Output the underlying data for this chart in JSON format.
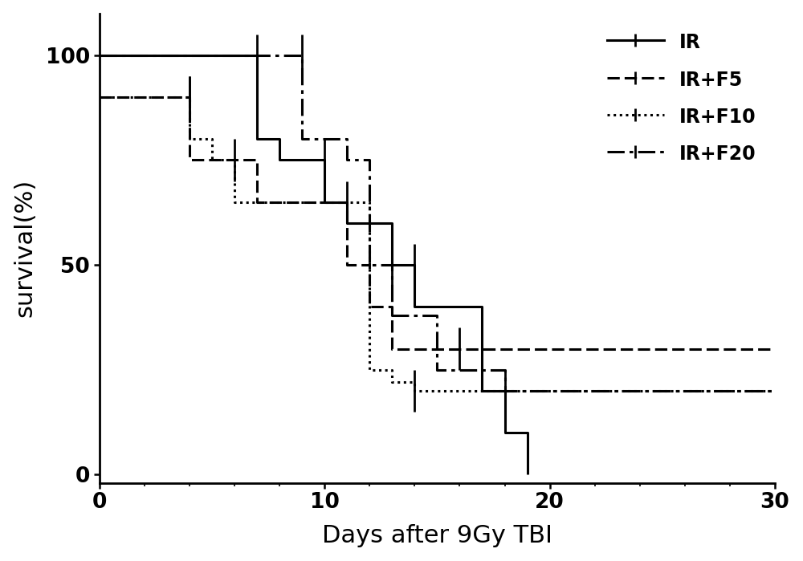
{
  "title": "",
  "xlabel": "Days after 9Gy TBI",
  "ylabel": "survival(%)",
  "xlim": [
    0,
    30
  ],
  "ylim": [
    -2,
    110
  ],
  "yticks": [
    0,
    50,
    100
  ],
  "xticks": [
    0,
    10,
    20,
    30
  ],
  "background_color": "#ffffff",
  "curves": {
    "IR": {
      "x": [
        0,
        7,
        7,
        8,
        8,
        10,
        10,
        11,
        11,
        13,
        13,
        14,
        14,
        17,
        17,
        18,
        18,
        19,
        19
      ],
      "y": [
        100,
        100,
        80,
        80,
        75,
        75,
        65,
        65,
        60,
        60,
        50,
        50,
        40,
        40,
        20,
        20,
        10,
        10,
        0
      ],
      "label": "IR",
      "censors": []
    },
    "IR+F5": {
      "x": [
        0,
        4,
        4,
        7,
        7,
        11,
        11,
        12,
        12,
        13,
        13,
        16,
        16,
        30
      ],
      "y": [
        90,
        90,
        75,
        75,
        65,
        65,
        50,
        50,
        40,
        40,
        30,
        30,
        30,
        30
      ],
      "label": "IR+F5",
      "censors": []
    },
    "IR+F10": {
      "x": [
        0,
        4,
        4,
        5,
        5,
        6,
        6,
        12,
        12,
        13,
        13,
        14,
        14,
        30
      ],
      "y": [
        90,
        90,
        80,
        80,
        75,
        75,
        65,
        65,
        25,
        25,
        22,
        22,
        20,
        20
      ],
      "label": "IR+F10",
      "censors": []
    },
    "IR+F20": {
      "x": [
        0,
        9,
        9,
        11,
        11,
        12,
        12,
        13,
        13,
        15,
        15,
        18,
        18,
        30
      ],
      "y": [
        100,
        100,
        80,
        80,
        75,
        75,
        50,
        50,
        38,
        38,
        25,
        25,
        20,
        20
      ],
      "label": "IR+F20",
      "censors": []
    }
  },
  "linewidth": 2.2,
  "legend_fontsize": 17,
  "axis_label_fontsize": 22,
  "tick_fontsize": 19,
  "censor_tick_height": 5,
  "censor_tick_linewidth": 2.0
}
